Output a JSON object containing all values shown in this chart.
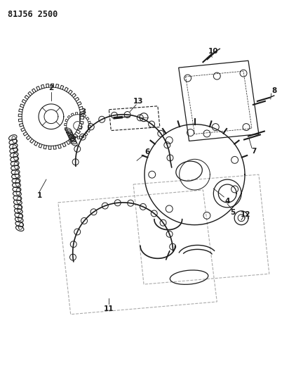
{
  "title": "81J56 2500",
  "bg_color": "#ffffff",
  "line_color": "#1a1a1a",
  "label_color": "#1a1a1a",
  "label_fontsize": 7.5,
  "title_fontsize": 8.5
}
